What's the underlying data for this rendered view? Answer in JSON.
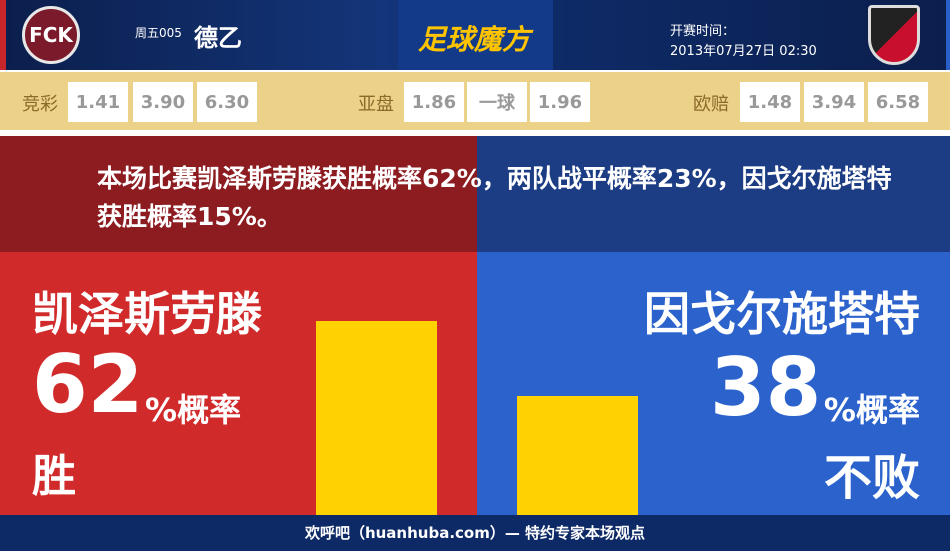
{
  "header": {
    "home_logo_text": "FCK",
    "round": "周五005",
    "league": "德乙",
    "brand": "足球魔方",
    "kickoff_label": "开赛时间：",
    "kickoff_time": "2013年07月27日 02:30"
  },
  "odds": {
    "jingcai": {
      "label": "竞彩",
      "values": [
        "1.41",
        "3.90",
        "6.30"
      ]
    },
    "yapan": {
      "label": "亚盘",
      "values": [
        "1.86",
        "一球",
        "1.96"
      ]
    },
    "oupei": {
      "label": "欧赔",
      "values": [
        "1.48",
        "3.94",
        "6.58"
      ]
    }
  },
  "summary": "本场比赛凯泽斯劳滕获胜概率62%，两队战平概率23%，因戈尔施塔特获胜概率15%。",
  "home": {
    "name": "凯泽斯劳滕",
    "percent": "62",
    "unit": "%概率",
    "outcome": "胜",
    "fill": 0.62
  },
  "away": {
    "name": "因戈尔施塔特",
    "percent": "38",
    "unit": "%概率",
    "outcome": "不败",
    "fill": 0.38
  },
  "footer": "欢呼吧（huanhuba.com）— 特约专家本场观点",
  "colors": {
    "home": "#d02a2b",
    "away": "#2b62cc",
    "bar": "#ffd200",
    "header": "#0e2a66"
  }
}
